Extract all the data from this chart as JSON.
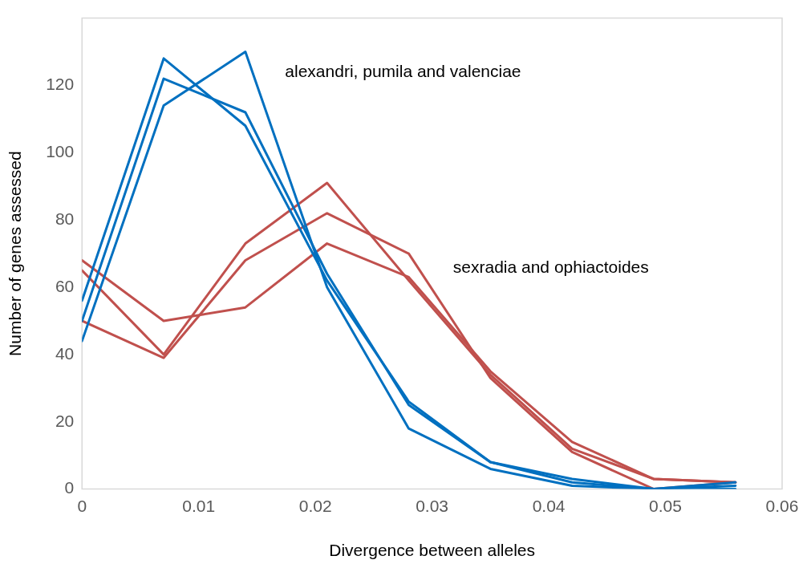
{
  "chart_data": {
    "type": "line",
    "xlabel": "Divergence between alleles",
    "ylabel": "Number of genes assessed",
    "x": [
      0,
      0.007,
      0.014,
      0.021,
      0.028,
      0.035,
      0.042,
      0.049,
      0.056
    ],
    "series": [
      {
        "color": "#0070c0",
        "values": [
          56,
          128,
          108,
          62,
          26,
          8,
          3,
          0,
          2
        ]
      },
      {
        "color": "#0070c0",
        "values": [
          50,
          122,
          112,
          64,
          25,
          8,
          2,
          0,
          1
        ]
      },
      {
        "color": "#0070c0",
        "values": [
          44,
          114,
          130,
          60,
          18,
          6,
          1,
          0,
          0
        ]
      },
      {
        "color": "#c0504d",
        "values": [
          68,
          50,
          54,
          73,
          63,
          35,
          14,
          3,
          2
        ]
      },
      {
        "color": "#c0504d",
        "values": [
          65,
          40,
          73,
          91,
          62,
          34,
          12,
          3,
          2
        ]
      },
      {
        "color": "#c0504d",
        "values": [
          50,
          39,
          68,
          82,
          70,
          33,
          11,
          0,
          2
        ]
      }
    ],
    "xlim": [
      0,
      0.06
    ],
    "xticks": [
      0,
      0.01,
      0.02,
      0.03,
      0.04,
      0.05,
      0.06
    ],
    "ylim": [
      0,
      140
    ],
    "yticks": [
      0,
      20,
      40,
      60,
      80,
      100,
      120
    ],
    "grid": false,
    "legend": false,
    "marker": "none",
    "line_style": "solid",
    "annotations": [
      "alexandri, pumila and valenciae",
      "sexradia and ophiactoides"
    ]
  }
}
